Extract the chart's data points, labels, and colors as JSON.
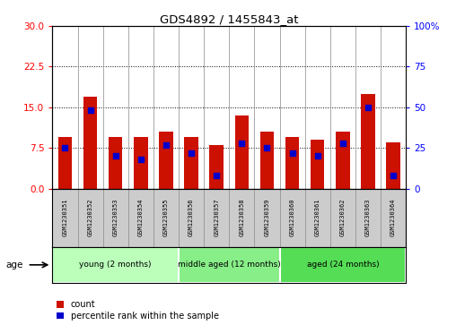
{
  "title": "GDS4892 / 1455843_at",
  "samples": [
    "GSM1230351",
    "GSM1230352",
    "GSM1230353",
    "GSM1230354",
    "GSM1230355",
    "GSM1230356",
    "GSM1230357",
    "GSM1230358",
    "GSM1230359",
    "GSM1230360",
    "GSM1230361",
    "GSM1230362",
    "GSM1230363",
    "GSM1230364"
  ],
  "count_values": [
    9.5,
    17.0,
    9.5,
    9.5,
    10.5,
    9.5,
    8.0,
    13.5,
    10.5,
    9.5,
    9.0,
    10.5,
    17.5,
    8.5
  ],
  "percentile_values": [
    25,
    48,
    20,
    18,
    27,
    22,
    8,
    28,
    25,
    22,
    20,
    28,
    50,
    8
  ],
  "ylim_left": [
    0,
    30
  ],
  "ylim_right": [
    0,
    100
  ],
  "yticks_left": [
    0,
    7.5,
    15,
    22.5,
    30
  ],
  "yticks_right": [
    0,
    25,
    50,
    75,
    100
  ],
  "bar_color": "#cc1100",
  "dot_color": "#0000cc",
  "groups": [
    {
      "label": "young (2 months)",
      "start": 0,
      "end": 5
    },
    {
      "label": "middle aged (12 months)",
      "start": 5,
      "end": 9
    },
    {
      "label": "aged (24 months)",
      "start": 9,
      "end": 14
    }
  ],
  "group_colors": [
    "#bbffbb",
    "#88ee88",
    "#55dd55"
  ],
  "tick_label_bg": "#cccccc",
  "bar_width": 0.55,
  "age_label": "age",
  "legend_count": "count",
  "legend_percentile": "percentile rank within the sample"
}
